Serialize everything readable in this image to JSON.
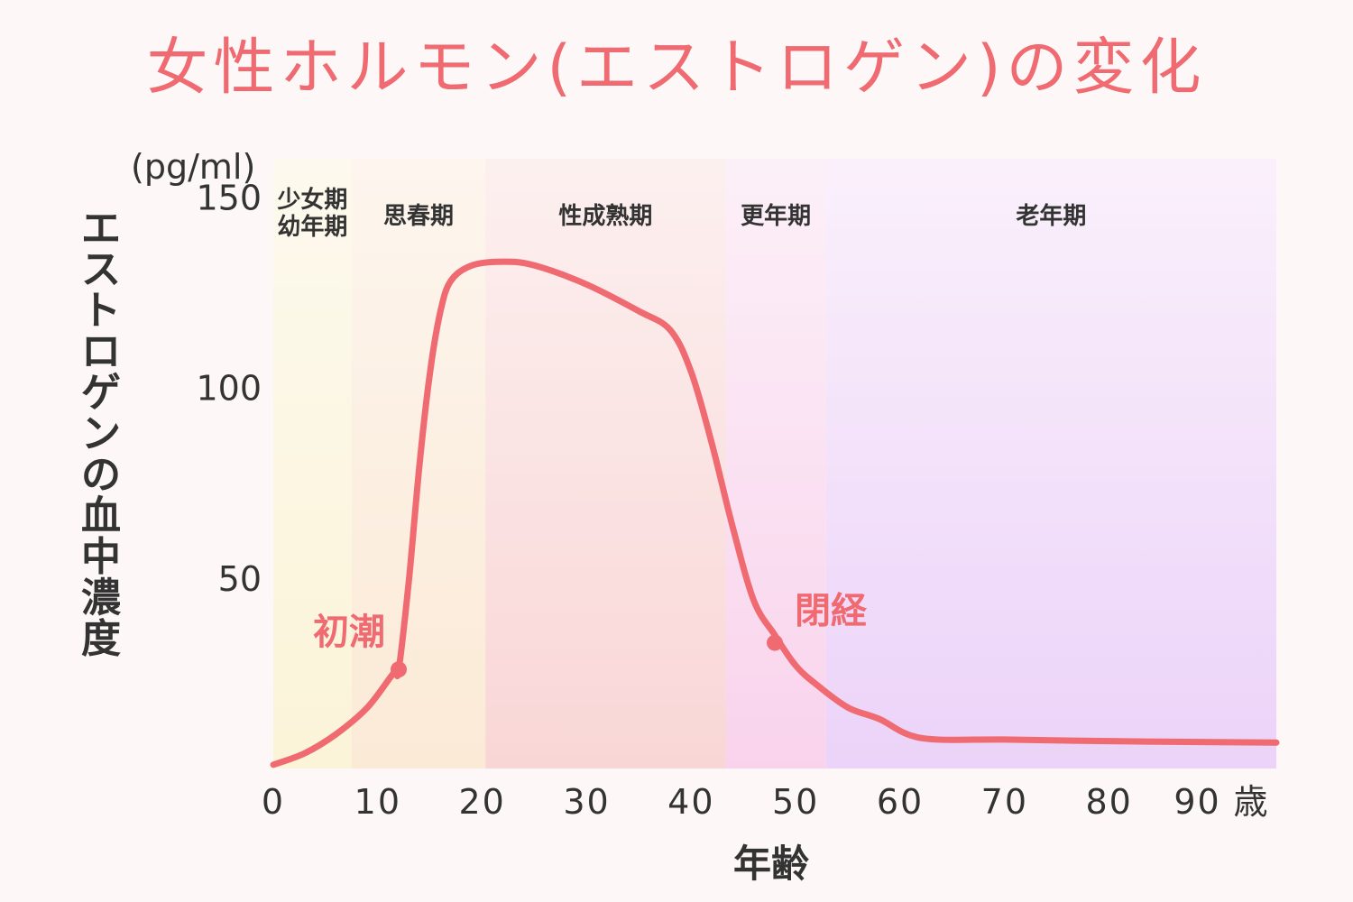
{
  "title": "女性ホルモン(エストロゲン)の変化",
  "colors": {
    "accent": "#ef6a71",
    "background": "#fdf8f7",
    "text": "#333333"
  },
  "chart_data": {
    "type": "line",
    "title": "女性ホルモン(エストロゲン)の変化",
    "xlabel": "年齢",
    "ylabel": "エストロゲンの血中濃度",
    "y_unit": "(pg/ml)",
    "x_unit": "歳",
    "xlim": [
      0,
      96
    ],
    "ylim": [
      0,
      160
    ],
    "x_ticks": [
      0,
      10,
      20,
      30,
      40,
      50,
      60,
      70,
      80,
      90
    ],
    "y_ticks": [
      50,
      100,
      150
    ],
    "grid": false,
    "phases": [
      {
        "name": "少女期\n幼年期",
        "start": 0,
        "end": 7.5,
        "color_top": "#fdf9ee",
        "color_bottom": "#fbf4d8"
      },
      {
        "name": "思春期",
        "start": 7.5,
        "end": 20.3,
        "color_top": "#fdf5ee",
        "color_bottom": "#fbead6"
      },
      {
        "name": "性成熟期",
        "start": 20.3,
        "end": 43.3,
        "color_top": "#fcf0ef",
        "color_bottom": "#f9d6d6"
      },
      {
        "name": "更年期",
        "start": 43.3,
        "end": 52.9,
        "color_top": "#fcf0f8",
        "color_bottom": "#f9d3ec"
      },
      {
        "name": "老年期",
        "start": 52.9,
        "end": 96,
        "color_top": "#faf0fb",
        "color_bottom": "#ecd3f9"
      }
    ],
    "series": [
      {
        "name": "エストロゲン",
        "color": "#ef6a71",
        "points": [
          [
            0,
            1
          ],
          [
            3,
            4
          ],
          [
            6,
            9
          ],
          [
            9,
            16
          ],
          [
            11.5,
            25
          ],
          [
            12,
            26
          ],
          [
            13,
            50
          ],
          [
            14,
            80
          ],
          [
            15,
            104
          ],
          [
            16,
            120
          ],
          [
            17,
            128
          ],
          [
            19,
            132
          ],
          [
            22,
            133
          ],
          [
            25,
            132
          ],
          [
            30,
            127
          ],
          [
            35,
            120
          ],
          [
            38,
            115
          ],
          [
            40,
            104
          ],
          [
            42,
            85
          ],
          [
            44,
            63
          ],
          [
            46,
            44
          ],
          [
            48,
            35
          ],
          [
            50,
            27
          ],
          [
            52,
            22
          ],
          [
            55,
            16
          ],
          [
            58,
            13
          ],
          [
            62,
            8
          ],
          [
            70,
            7.6
          ],
          [
            80,
            7.2
          ],
          [
            90,
            6.9
          ],
          [
            96,
            6.8
          ]
        ]
      }
    ],
    "annotations": [
      {
        "label": "初潮",
        "x": 12,
        "y": 26
      },
      {
        "label": "閉経",
        "x": 48,
        "y": 33
      }
    ]
  }
}
